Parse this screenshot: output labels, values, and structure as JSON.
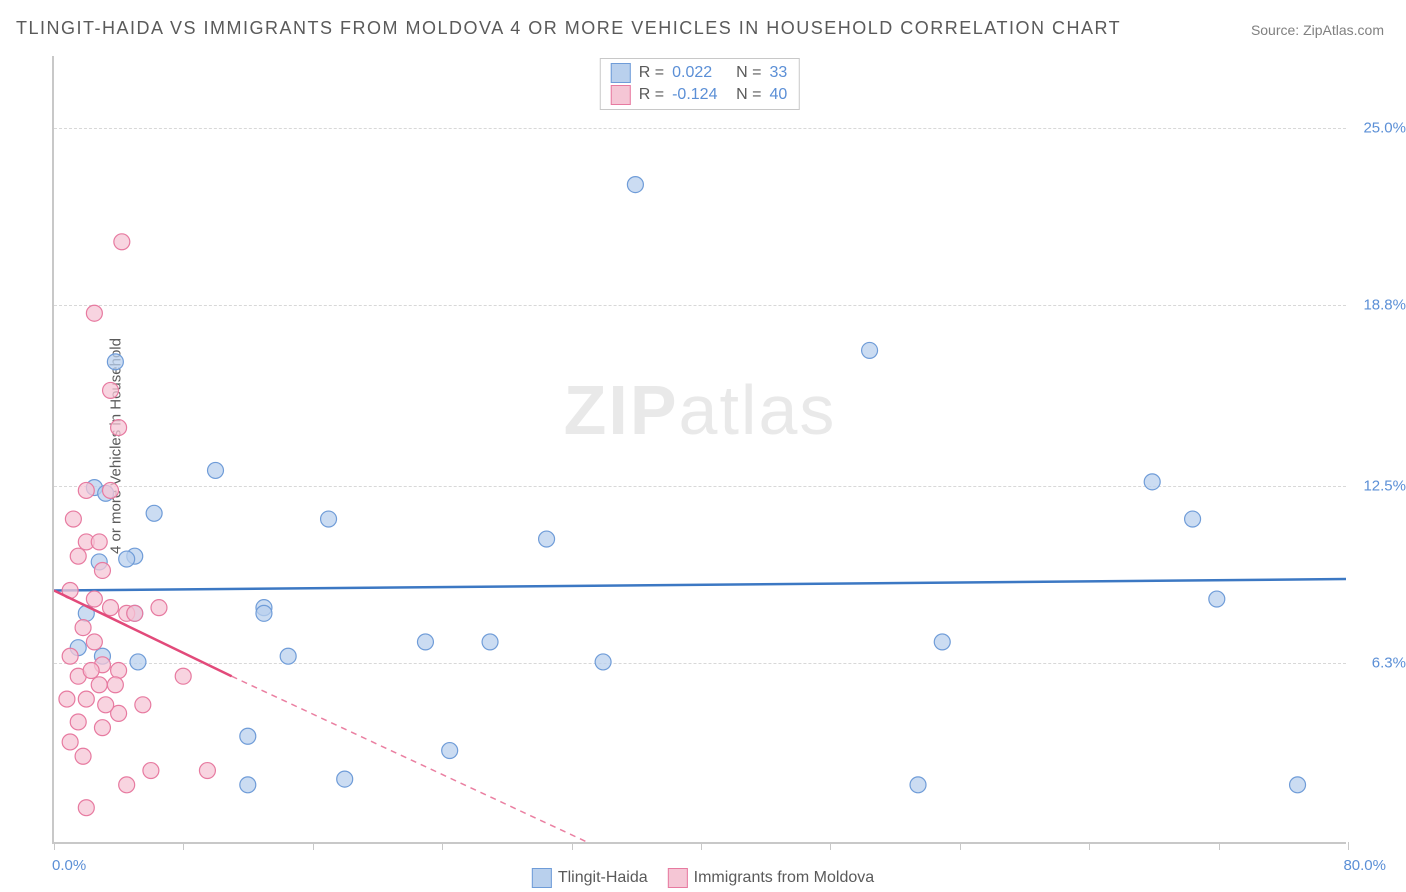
{
  "title": "TLINGIT-HAIDA VS IMMIGRANTS FROM MOLDOVA 4 OR MORE VEHICLES IN HOUSEHOLD CORRELATION CHART",
  "source": "Source: ZipAtlas.com",
  "ylabel": "4 or more Vehicles in Household",
  "watermark_a": "ZIP",
  "watermark_b": "atlas",
  "chart": {
    "type": "scatter",
    "xlim": [
      0,
      80
    ],
    "ylim": [
      0,
      27.5
    ],
    "x_axis_labels": [
      {
        "pos": 0,
        "text": "0.0%"
      },
      {
        "pos": 80,
        "text": "80.0%"
      }
    ],
    "y_ticks": [
      {
        "val": 6.3,
        "label": "6.3%"
      },
      {
        "val": 12.5,
        "label": "12.5%"
      },
      {
        "val": 18.8,
        "label": "18.8%"
      },
      {
        "val": 25.0,
        "label": "25.0%"
      }
    ],
    "x_tick_positions": [
      0,
      8,
      16,
      24,
      32,
      40,
      48,
      56,
      64,
      72,
      80
    ],
    "background_color": "#ffffff",
    "grid_color": "#d8d8d8",
    "marker_radius": 8,
    "marker_stroke_width": 1.2,
    "line_width": 2.5,
    "series": [
      {
        "name": "Tlingit-Haida",
        "fill_color": "#b9d0ed",
        "stroke_color": "#6f9cd8",
        "line_color": "#3c78c3",
        "R": "0.022",
        "N": "33",
        "trend": {
          "x1": 0,
          "y1": 8.8,
          "x2": 80,
          "y2": 9.2,
          "dash_from_x": 80
        },
        "points": [
          [
            3.8,
            16.8
          ],
          [
            6.2,
            11.5
          ],
          [
            2.5,
            12.4
          ],
          [
            3.2,
            12.2
          ],
          [
            5.0,
            10.0
          ],
          [
            4.5,
            9.9
          ],
          [
            2.8,
            9.8
          ],
          [
            17.0,
            11.3
          ],
          [
            10.0,
            13.0
          ],
          [
            36.0,
            23.0
          ],
          [
            50.5,
            17.2
          ],
          [
            30.5,
            10.6
          ],
          [
            13.0,
            8.2
          ],
          [
            13.0,
            8.0
          ],
          [
            5.0,
            8.0
          ],
          [
            2.0,
            8.0
          ],
          [
            23.0,
            7.0
          ],
          [
            14.5,
            6.5
          ],
          [
            5.2,
            6.3
          ],
          [
            3.0,
            6.5
          ],
          [
            34.0,
            6.3
          ],
          [
            12.0,
            3.7
          ],
          [
            24.5,
            3.2
          ],
          [
            18.0,
            2.2
          ],
          [
            12.0,
            2.0
          ],
          [
            53.5,
            2.0
          ],
          [
            55.0,
            7.0
          ],
          [
            77.0,
            2.0
          ],
          [
            68.0,
            12.6
          ],
          [
            70.5,
            11.3
          ],
          [
            72.0,
            8.5
          ],
          [
            27.0,
            7.0
          ],
          [
            1.5,
            6.8
          ]
        ]
      },
      {
        "name": "Immigants from Moldova",
        "display_name": "Immigrants from Moldova",
        "fill_color": "#f5c6d5",
        "stroke_color": "#e77aa0",
        "line_color": "#e24a7a",
        "R": "-0.124",
        "N": "40",
        "trend": {
          "x1": 0,
          "y1": 8.8,
          "x2": 11.0,
          "y2": 5.8,
          "dash_to_x": 33,
          "dash_to_y": 0
        },
        "points": [
          [
            4.2,
            21.0
          ],
          [
            2.5,
            18.5
          ],
          [
            3.5,
            15.8
          ],
          [
            4.0,
            14.5
          ],
          [
            2.0,
            12.3
          ],
          [
            3.5,
            12.3
          ],
          [
            1.2,
            11.3
          ],
          [
            2.0,
            10.5
          ],
          [
            2.8,
            10.5
          ],
          [
            1.5,
            10.0
          ],
          [
            3.0,
            9.5
          ],
          [
            1.0,
            8.8
          ],
          [
            2.5,
            8.5
          ],
          [
            3.5,
            8.2
          ],
          [
            4.5,
            8.0
          ],
          [
            1.8,
            7.5
          ],
          [
            5.0,
            8.0
          ],
          [
            6.5,
            8.2
          ],
          [
            2.5,
            7.0
          ],
          [
            1.0,
            6.5
          ],
          [
            3.0,
            6.2
          ],
          [
            4.0,
            6.0
          ],
          [
            1.5,
            5.8
          ],
          [
            2.8,
            5.5
          ],
          [
            3.8,
            5.5
          ],
          [
            0.8,
            5.0
          ],
          [
            2.0,
            5.0
          ],
          [
            4.0,
            4.5
          ],
          [
            5.5,
            4.8
          ],
          [
            1.5,
            4.2
          ],
          [
            3.0,
            4.0
          ],
          [
            6.0,
            2.5
          ],
          [
            9.5,
            2.5
          ],
          [
            4.5,
            2.0
          ],
          [
            2.0,
            1.2
          ],
          [
            1.0,
            3.5
          ],
          [
            8.0,
            5.8
          ],
          [
            2.3,
            6.0
          ],
          [
            3.2,
            4.8
          ],
          [
            1.8,
            3.0
          ]
        ]
      }
    ]
  },
  "legend_bottom": [
    {
      "label": "Tlingit-Haida",
      "fill": "#b9d0ed",
      "stroke": "#6f9cd8"
    },
    {
      "label": "Immigrants from Moldova",
      "fill": "#f5c6d5",
      "stroke": "#e77aa0"
    }
  ]
}
